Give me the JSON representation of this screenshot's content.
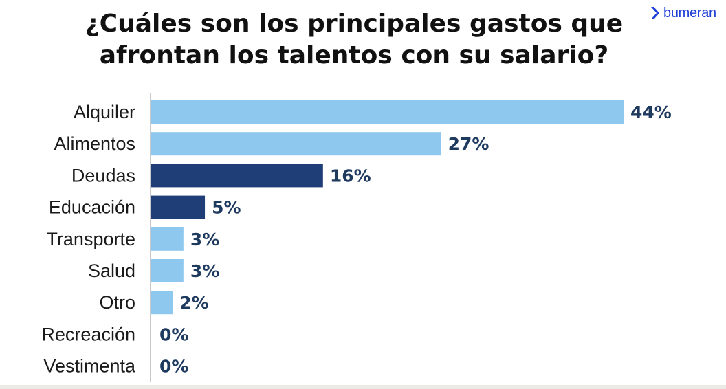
{
  "title": "¿Cuáles son los principales gastos que\nafrontan los talentos con su salario?",
  "brand": {
    "name": "bumeran",
    "color": "#1f3fd6",
    "icon": "chevron-right-icon"
  },
  "colors": {
    "light_bar": "#8ec8ef",
    "dark_bar": "#1f3e78",
    "label": "#1f3a5f",
    "category": "#1a1a1a"
  },
  "chart_data": {
    "type": "bar",
    "orientation": "horizontal",
    "title": "¿Cuáles son los principales gastos que afrontan los talentos con su salario?",
    "categories": [
      "Alquiler",
      "Alimentos",
      "Deudas",
      "Educación",
      "Transporte",
      "Salud",
      "Otro",
      "Recreación",
      "Vestimenta"
    ],
    "values": [
      44,
      27,
      16,
      5,
      3,
      3,
      2,
      0,
      0
    ],
    "value_labels": [
      "44%",
      "27%",
      "16%",
      "5%",
      "3%",
      "3%",
      "2%",
      "0%",
      "0%"
    ],
    "bar_colors": [
      "#8ec8ef",
      "#8ec8ef",
      "#1f3e78",
      "#1f3e78",
      "#8ec8ef",
      "#8ec8ef",
      "#8ec8ef",
      "#8ec8ef",
      "#8ec8ef"
    ],
    "unit": "%",
    "xlim": [
      0,
      44
    ],
    "grid": false,
    "legend": false
  }
}
